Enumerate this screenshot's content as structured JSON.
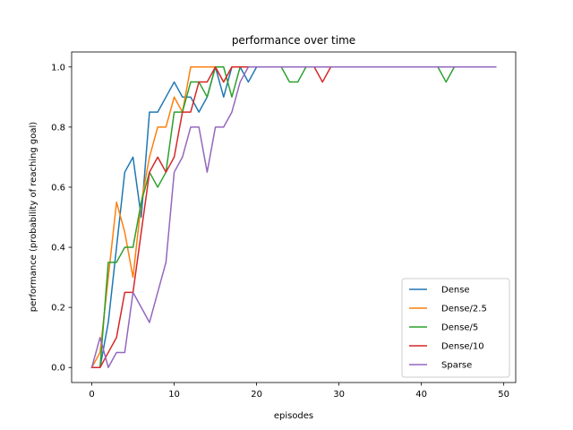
{
  "chart_data": {
    "type": "line",
    "title": "performance over time",
    "xlabel": "episodes",
    "ylabel": "performance (probability of reaching goal)",
    "xlim": [
      -2.45,
      51.45
    ],
    "ylim": [
      -0.05,
      1.05
    ],
    "xticks": [
      0,
      10,
      20,
      30,
      40,
      50
    ],
    "yticks": [
      0.0,
      0.2,
      0.4,
      0.6,
      0.8,
      1.0
    ],
    "xtick_labels": [
      "0",
      "10",
      "20",
      "30",
      "40",
      "50"
    ],
    "ytick_labels": [
      "0.0",
      "0.2",
      "0.4",
      "0.6",
      "0.8",
      "1.0"
    ],
    "grid": false,
    "legend_position": "lower-right",
    "series": [
      {
        "name": "Dense",
        "color": "#1f77b4",
        "x": [
          0,
          1,
          2,
          3,
          4,
          5,
          6,
          7,
          8,
          9,
          10,
          11,
          12,
          13,
          14,
          15,
          16,
          17,
          18,
          19,
          20,
          21,
          22,
          23,
          24,
          25,
          26,
          27,
          28,
          29,
          30,
          31,
          32,
          33,
          34,
          35,
          36,
          37,
          38,
          39,
          40,
          41,
          42,
          43,
          44,
          45,
          46,
          47,
          48,
          49
        ],
        "values": [
          0,
          0,
          0.15,
          0.4,
          0.65,
          0.7,
          0.5,
          0.85,
          0.85,
          0.9,
          0.95,
          0.9,
          0.9,
          0.85,
          0.9,
          1.0,
          0.9,
          1.0,
          1.0,
          0.95,
          1.0,
          1.0,
          1.0,
          1.0,
          1.0,
          1.0,
          1.0,
          1.0,
          1.0,
          1.0,
          1.0,
          1.0,
          1.0,
          1.0,
          1.0,
          1.0,
          1.0,
          1.0,
          1.0,
          1.0,
          1.0,
          1.0,
          1.0,
          1.0,
          1.0,
          1.0,
          1.0,
          1.0,
          1.0,
          1.0
        ]
      },
      {
        "name": "Dense/2.5",
        "color": "#ff7f0e",
        "x": [
          0,
          1,
          2,
          3,
          4,
          5,
          6,
          7,
          8,
          9,
          10,
          11,
          12,
          13,
          14,
          15,
          16,
          17,
          18,
          19,
          20,
          21,
          22,
          23,
          24,
          25,
          26,
          27,
          28,
          29,
          30,
          31,
          32,
          33,
          34,
          35,
          36,
          37,
          38,
          39,
          40,
          41,
          42,
          43,
          44,
          45,
          46,
          47,
          48,
          49
        ],
        "values": [
          0,
          0.05,
          0.3,
          0.55,
          0.45,
          0.3,
          0.55,
          0.7,
          0.8,
          0.8,
          0.9,
          0.85,
          1.0,
          1.0,
          1.0,
          1.0,
          0.95,
          1.0,
          1.0,
          1.0,
          1.0,
          1.0,
          1.0,
          1.0,
          1.0,
          1.0,
          1.0,
          1.0,
          1.0,
          1.0,
          1.0,
          1.0,
          1.0,
          1.0,
          1.0,
          1.0,
          1.0,
          1.0,
          1.0,
          1.0,
          1.0,
          1.0,
          1.0,
          1.0,
          1.0,
          1.0,
          1.0,
          1.0,
          1.0,
          1.0
        ]
      },
      {
        "name": "Dense/5",
        "color": "#2ca02c",
        "x": [
          0,
          1,
          2,
          3,
          4,
          5,
          6,
          7,
          8,
          9,
          10,
          11,
          12,
          13,
          14,
          15,
          16,
          17,
          18,
          19,
          20,
          21,
          22,
          23,
          24,
          25,
          26,
          27,
          28,
          29,
          30,
          31,
          32,
          33,
          34,
          35,
          36,
          37,
          38,
          39,
          40,
          41,
          42,
          43,
          44,
          45,
          46,
          47,
          48,
          49
        ],
        "values": [
          0,
          0,
          0.35,
          0.35,
          0.4,
          0.4,
          0.55,
          0.65,
          0.6,
          0.65,
          0.85,
          0.85,
          0.95,
          0.95,
          0.9,
          1.0,
          1.0,
          0.9,
          1.0,
          1.0,
          1.0,
          1.0,
          1.0,
          1.0,
          0.95,
          0.95,
          1.0,
          1.0,
          1.0,
          1.0,
          1.0,
          1.0,
          1.0,
          1.0,
          1.0,
          1.0,
          1.0,
          1.0,
          1.0,
          1.0,
          1.0,
          1.0,
          1.0,
          0.95,
          1.0,
          1.0,
          1.0,
          1.0,
          1.0,
          1.0
        ]
      },
      {
        "name": "Dense/10",
        "color": "#d62728",
        "x": [
          0,
          1,
          2,
          3,
          4,
          5,
          6,
          7,
          8,
          9,
          10,
          11,
          12,
          13,
          14,
          15,
          16,
          17,
          18,
          19,
          20,
          21,
          22,
          23,
          24,
          25,
          26,
          27,
          28,
          29,
          30,
          31,
          32,
          33,
          34,
          35,
          36,
          37,
          38,
          39,
          40,
          41,
          42,
          43,
          44,
          45,
          46,
          47,
          48,
          49
        ],
        "values": [
          0,
          0,
          0.05,
          0.1,
          0.25,
          0.25,
          0.45,
          0.65,
          0.7,
          0.65,
          0.7,
          0.85,
          0.85,
          0.95,
          0.95,
          1.0,
          0.95,
          1.0,
          1.0,
          1.0,
          1.0,
          1.0,
          1.0,
          1.0,
          1.0,
          1.0,
          1.0,
          1.0,
          0.95,
          1.0,
          1.0,
          1.0,
          1.0,
          1.0,
          1.0,
          1.0,
          1.0,
          1.0,
          1.0,
          1.0,
          1.0,
          1.0,
          1.0,
          1.0,
          1.0,
          1.0,
          1.0,
          1.0,
          1.0,
          1.0
        ]
      },
      {
        "name": "Sparse",
        "color": "#9467bd",
        "x": [
          0,
          1,
          2,
          3,
          4,
          5,
          6,
          7,
          8,
          9,
          10,
          11,
          12,
          13,
          14,
          15,
          16,
          17,
          18,
          19,
          20,
          21,
          22,
          23,
          24,
          25,
          26,
          27,
          28,
          29,
          30,
          31,
          32,
          33,
          34,
          35,
          36,
          37,
          38,
          39,
          40,
          41,
          42,
          43,
          44,
          45,
          46,
          47,
          48,
          49
        ],
        "values": [
          0,
          0.1,
          0,
          0.05,
          0.05,
          0.25,
          0.2,
          0.15,
          0.25,
          0.35,
          0.65,
          0.7,
          0.8,
          0.8,
          0.65,
          0.8,
          0.8,
          0.85,
          0.95,
          1.0,
          1.0,
          1.0,
          1.0,
          1.0,
          1.0,
          1.0,
          1.0,
          1.0,
          1.0,
          1.0,
          1.0,
          1.0,
          1.0,
          1.0,
          1.0,
          1.0,
          1.0,
          1.0,
          1.0,
          1.0,
          1.0,
          1.0,
          1.0,
          1.0,
          1.0,
          1.0,
          1.0,
          1.0,
          1.0,
          1.0
        ]
      }
    ]
  }
}
